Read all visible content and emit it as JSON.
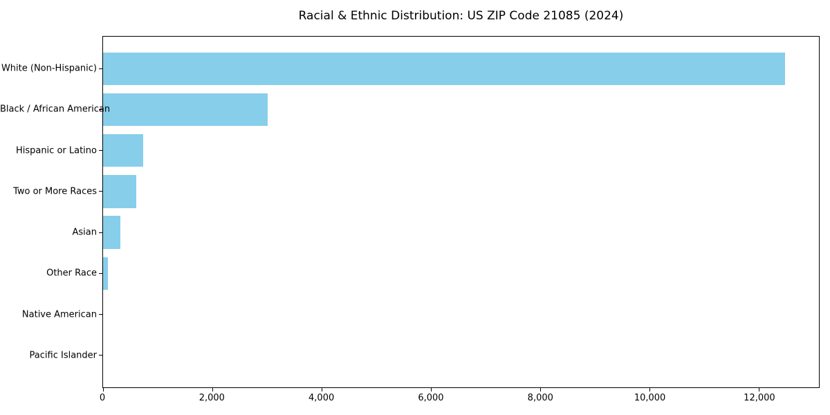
{
  "chart_data": {
    "type": "bar",
    "orientation": "horizontal",
    "title": "Racial & Ethnic Distribution: US ZIP Code 21085 (2024)",
    "categories": [
      "White (Non-Hispanic)",
      "Black / African American",
      "Hispanic or Latino",
      "Two or More Races",
      "Asian",
      "Other Race",
      "Native American",
      "Pacific Islander"
    ],
    "values": [
      12480,
      3010,
      740,
      610,
      315,
      90,
      0,
      0
    ],
    "xlabel": "",
    "ylabel": "",
    "xlim": [
      0,
      13100
    ],
    "xticks": [
      0,
      2000,
      4000,
      6000,
      8000,
      10000,
      12000
    ],
    "xticklabels": [
      "0",
      "2,000",
      "4,000",
      "6,000",
      "8,000",
      "10,000",
      "12,000"
    ],
    "bar_color": "#87CEEB",
    "grid": false,
    "legend": null
  }
}
